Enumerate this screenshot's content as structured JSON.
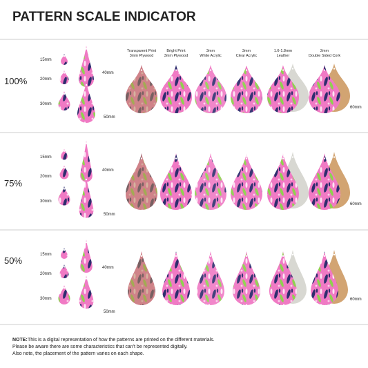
{
  "header": {
    "title": "PATTERN SCALE INDICATOR"
  },
  "materials": [
    {
      "line1": "Transparent Print",
      "line2": "3mm Plywood"
    },
    {
      "line1": "Bright Print",
      "line2": "3mm Plywood"
    },
    {
      "line1": "3mm",
      "line2": "White Acrylic"
    },
    {
      "line1": "3mm",
      "line2": "Clear Acrylic"
    },
    {
      "line1": "1.6-1.8mm",
      "line2": "Leather"
    },
    {
      "line1": "2mm",
      "line2": "Double Sided Cork"
    }
  ],
  "sections": [
    {
      "scale": "100%",
      "sizes": [
        "15mm",
        "20mm",
        "30mm",
        "40mm",
        "50mm"
      ],
      "large_size": "60mm"
    },
    {
      "scale": "75%",
      "sizes": [
        "15mm",
        "20mm",
        "30mm",
        "40mm",
        "50mm"
      ],
      "large_size": "60mm"
    },
    {
      "scale": "50%",
      "sizes": [
        "15mm",
        "20mm",
        "30mm",
        "40mm",
        "50mm"
      ],
      "large_size": "60mm"
    }
  ],
  "note": {
    "label": "NOTE:",
    "lines": [
      " This is a digital representation of how the patterns are printed on the different materials.",
      "Please be aware there are some characteristics that can't be represented digitally.",
      "Also note, the placement of the pattern varies on each shape."
    ]
  }
}
